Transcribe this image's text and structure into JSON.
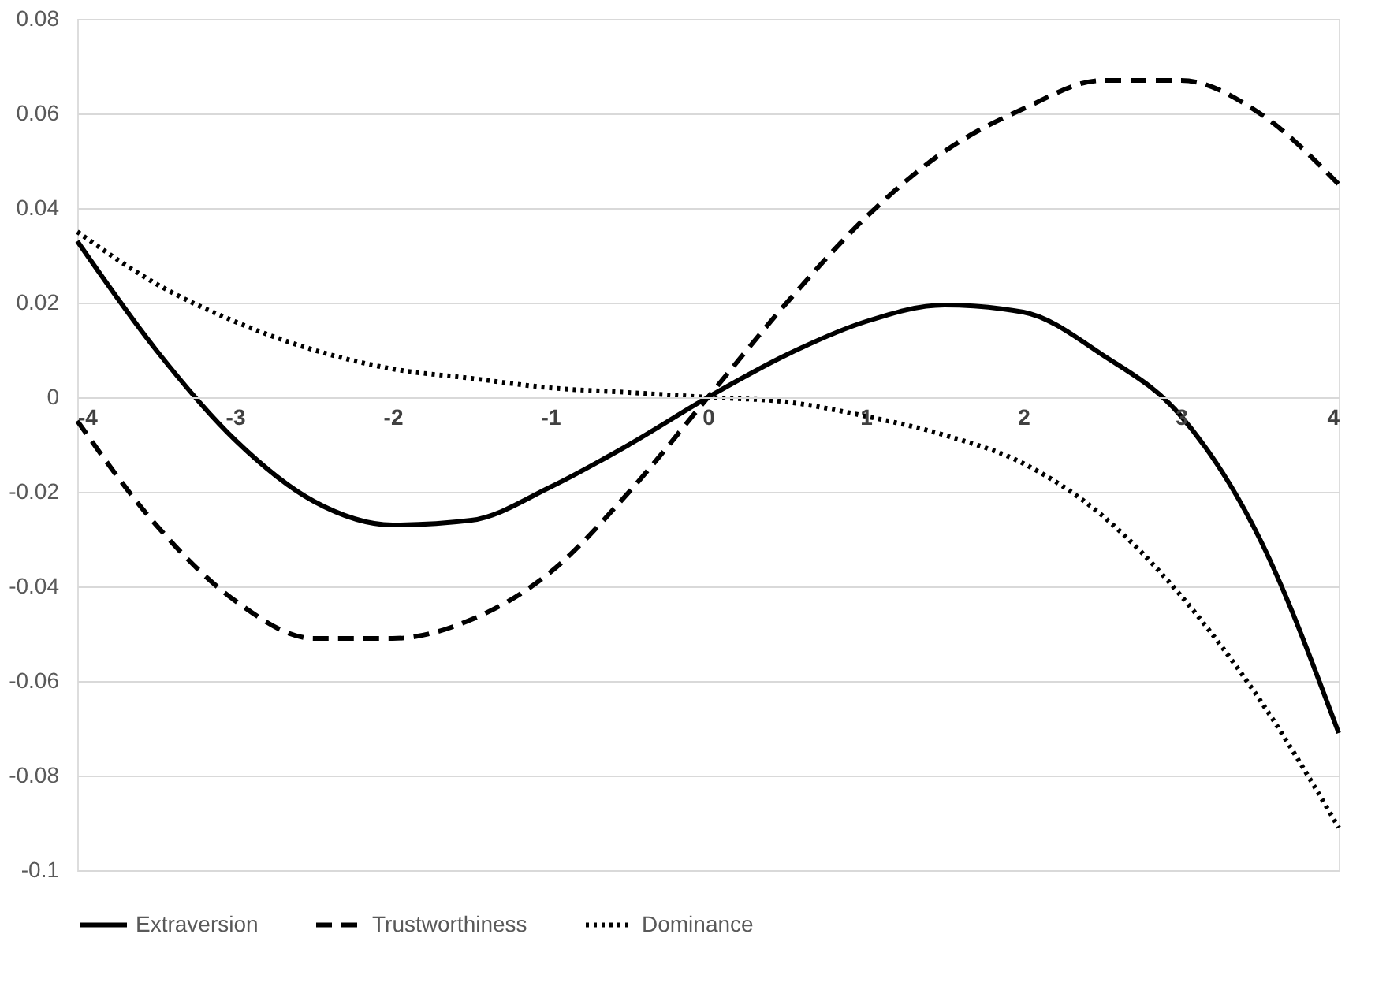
{
  "chart_data": {
    "type": "line",
    "x": [
      -4,
      -3.5,
      -3,
      -2.5,
      -2,
      -1.5,
      -1,
      -0.5,
      0,
      0.5,
      1,
      1.5,
      2,
      2.5,
      3,
      3.5,
      4
    ],
    "series": [
      {
        "name": "Extraversion",
        "color": "#000000",
        "line_style": "solid",
        "values": [
          0.033,
          0.01,
          -0.009,
          -0.022,
          -0.027,
          -0.026,
          -0.019,
          -0.01,
          0,
          0.009,
          0.016,
          0.0195,
          0.018,
          0.009,
          -0.004,
          -0.03,
          -0.071
        ]
      },
      {
        "name": "Trustworthiness",
        "color": "#000000",
        "line_style": "dashed",
        "values": [
          -0.005,
          -0.027,
          -0.043,
          -0.051,
          -0.051,
          -0.047,
          -0.037,
          -0.02,
          0,
          0.02,
          0.038,
          0.052,
          0.061,
          0.067,
          0.067,
          0.06,
          0.045
        ]
      },
      {
        "name": "Dominance",
        "color": "#000000",
        "line_style": "dotted",
        "values": [
          0.035,
          0.024,
          0.016,
          0.01,
          0.006,
          0.004,
          0.002,
          0.001,
          0,
          -0.001,
          -0.004,
          -0.008,
          -0.014,
          -0.025,
          -0.042,
          -0.064,
          -0.091
        ]
      }
    ],
    "xlim": [
      -4,
      4
    ],
    "xticks": [
      -4,
      -3,
      -2,
      -1,
      0,
      1,
      2,
      3,
      4
    ],
    "ylim": [
      -0.1,
      0.08
    ],
    "yticks": [
      -0.1,
      -0.08,
      -0.06,
      -0.04,
      -0.02,
      0,
      0.02,
      0.04,
      0.06,
      0.08
    ],
    "grid": "y",
    "legend": "bottom",
    "marker": "none"
  }
}
